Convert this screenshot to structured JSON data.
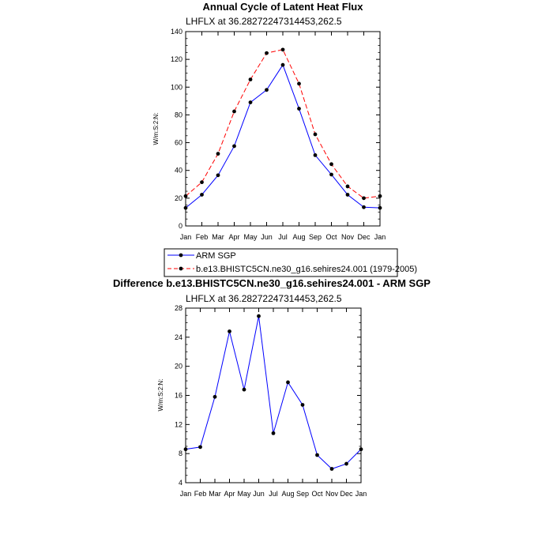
{
  "chart_data": [
    {
      "type": "line",
      "title": "Annual Cycle of Latent Heat Flux",
      "subtitle": "LHFLX at 36.28272247314453,262.5",
      "ylabel": "W/m:S:2:N:",
      "xlabel": "",
      "categories": [
        "Jan",
        "Feb",
        "Mar",
        "Apr",
        "May",
        "Jun",
        "Jul",
        "Aug",
        "Sep",
        "Oct",
        "Nov",
        "Dec",
        "Jan"
      ],
      "ylim": [
        0,
        140
      ],
      "yticks": [
        0,
        20,
        40,
        60,
        80,
        100,
        120,
        140
      ],
      "series": [
        {
          "name": "ARM SGP",
          "color": "#0000ff",
          "dash": "solid",
          "values": [
            13,
            22.5,
            36.5,
            57.5,
            89,
            98,
            116,
            84.5,
            51,
            37,
            22.5,
            13.5,
            13
          ]
        },
        {
          "name": "b.e13.BHISTC5CN.ne30_g16.sehires24.001 (1979-2005)",
          "color": "#ff0000",
          "dash": "dashed",
          "values": [
            21.5,
            31.5,
            52,
            82.5,
            105.5,
            124.5,
            127,
            102.5,
            66,
            44.5,
            28.5,
            20,
            21.5
          ]
        }
      ],
      "legend": "below"
    },
    {
      "type": "line",
      "title": "Difference b.e13.BHISTC5CN.ne30_g16.sehires24.001 - ARM SGP",
      "subtitle": "LHFLX at 36.28272247314453,262.5",
      "ylabel": "W/m:S:2:N:",
      "xlabel": "",
      "categories": [
        "Jan",
        "Feb",
        "Mar",
        "Apr",
        "May",
        "Jun",
        "Jul",
        "Aug",
        "Sep",
        "Oct",
        "Nov",
        "Dec",
        "Jan"
      ],
      "ylim": [
        4,
        28
      ],
      "yticks": [
        4,
        8,
        12,
        16,
        20,
        24,
        28
      ],
      "series": [
        {
          "name": "Difference",
          "color": "#0000ff",
          "dash": "solid",
          "values": [
            8.6,
            8.9,
            15.8,
            24.8,
            16.8,
            26.9,
            10.8,
            17.8,
            14.7,
            7.8,
            5.9,
            6.6,
            8.6
          ]
        }
      ]
    }
  ]
}
